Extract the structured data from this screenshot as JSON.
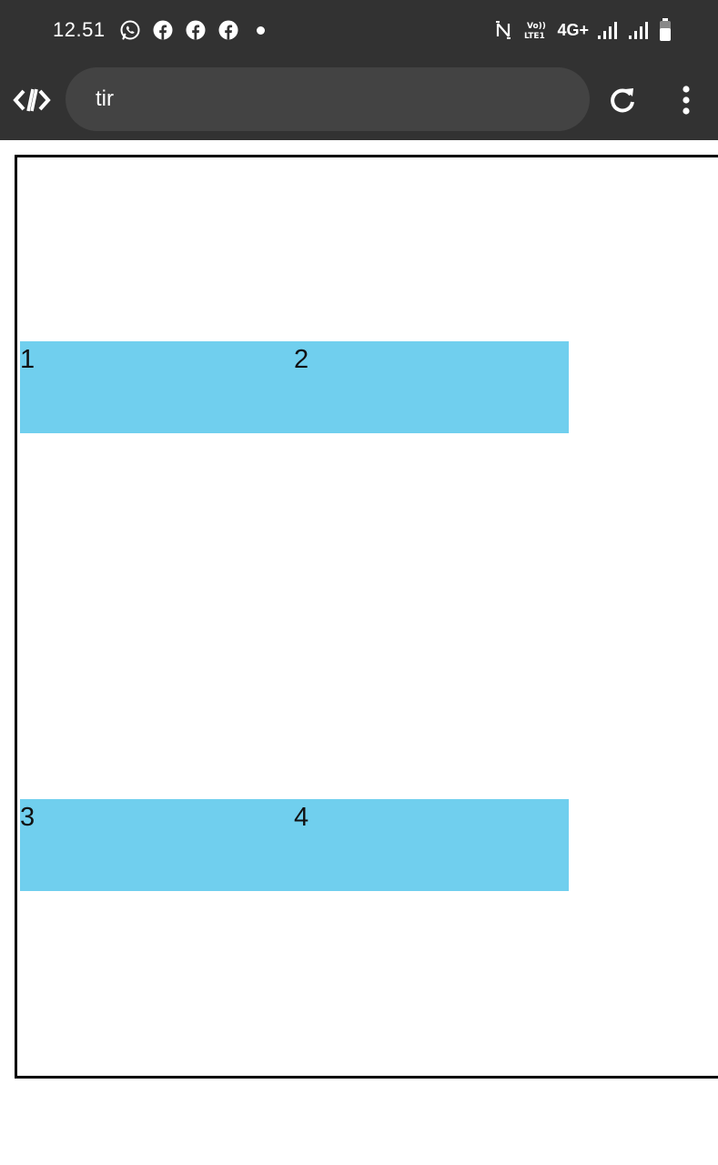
{
  "status_bar": {
    "time": "12.51",
    "notification_icons": [
      "whatsapp-icon",
      "facebook-icon",
      "facebook-icon",
      "facebook-icon"
    ],
    "network": "4G+",
    "volte": "Vo))\nLTE1"
  },
  "browser": {
    "url": "tir"
  },
  "table": {
    "rows": [
      {
        "cells": [
          "1",
          "2"
        ]
      },
      {
        "cells": [
          "3",
          "4"
        ]
      }
    ],
    "cell_background": "#70cfee",
    "border_color": "#000000"
  }
}
